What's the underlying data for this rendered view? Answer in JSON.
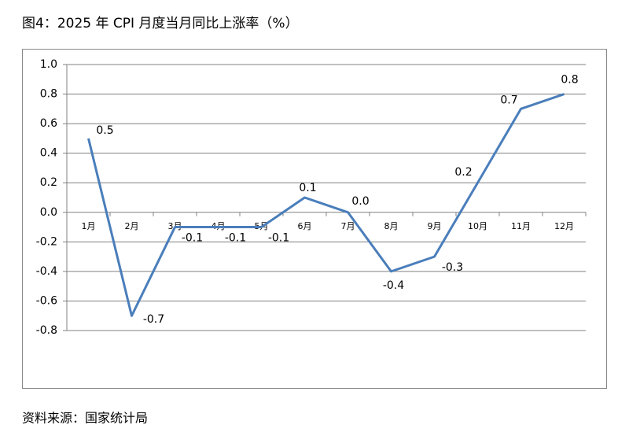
{
  "chart_data": {
    "type": "line",
    "title": "图4：2025 年 CPI 月度当月同比上涨率（%）",
    "source": "资料来源：国家统计局",
    "categories": [
      "1月",
      "2月",
      "3月",
      "4月",
      "5月",
      "6月",
      "7月",
      "8月",
      "9月",
      "10月",
      "11月",
      "12月"
    ],
    "values": [
      0.5,
      -0.7,
      -0.1,
      -0.1,
      -0.1,
      0.1,
      0,
      -0.4,
      -0.3,
      0.2,
      0.7,
      0.8
    ],
    "value_labels": [
      "0.5",
      "-0.7",
      "-0.1",
      "-0.1",
      "-0.1",
      "0.1",
      "0.0",
      "-0.4",
      "-0.3",
      "0.2",
      "0.7",
      "0.8"
    ],
    "color": "#4a7ebb",
    "ylim": [
      -0.8,
      1.0
    ],
    "yticks": [
      {
        "value": 1.0,
        "label": "1.0"
      },
      0.8,
      0.6,
      0.4,
      0.2,
      {
        "value": 0,
        "label": "0.0"
      },
      -0.2,
      -0.4,
      -0.6,
      -0.8
    ],
    "grid": true
  }
}
